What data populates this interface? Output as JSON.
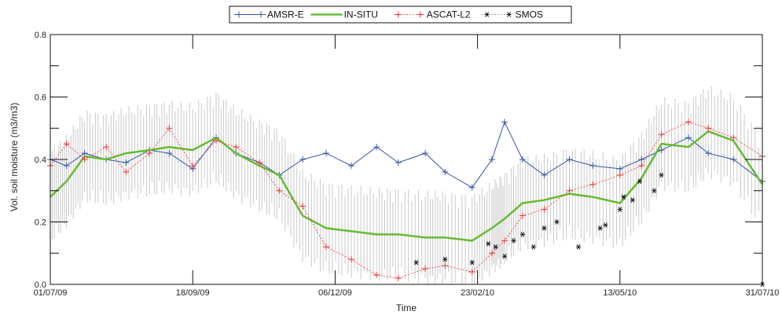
{
  "chart_data": {
    "type": "line",
    "xlabel": "Time",
    "ylabel": "Vol. soil moisture (m3/m3)",
    "ylim": [
      0,
      0.8
    ],
    "xlim": [
      "2009-07-01",
      "2010-07-31"
    ],
    "x_ticks": [
      "01/07/09",
      "18/09/09",
      "06/12/09",
      "23/02/10",
      "13/05/10",
      "31/07/10"
    ],
    "y_ticks": [
      "0.0",
      "0.2",
      "0.4",
      "0.6",
      "0.8"
    ],
    "grid": false,
    "legend_position": "top-center",
    "series": [
      {
        "name": "AMSR-E",
        "color": "#3355aa",
        "marker": "plus",
        "x": [
          "2009-07-01",
          "2009-07-10",
          "2009-07-20",
          "2009-08-01",
          "2009-08-12",
          "2009-08-25",
          "2009-09-05",
          "2009-09-18",
          "2009-10-01",
          "2009-10-12",
          "2009-10-25",
          "2009-11-05",
          "2009-11-18",
          "2009-12-01",
          "2009-12-15",
          "2009-12-29",
          "2010-01-10",
          "2010-01-25",
          "2010-02-05",
          "2010-02-20",
          "2010-03-03",
          "2010-03-10",
          "2010-03-20",
          "2010-04-01",
          "2010-04-15",
          "2010-04-28",
          "2010-05-13",
          "2010-05-25",
          "2010-06-05",
          "2010-06-20",
          "2010-07-01",
          "2010-07-15",
          "2010-07-31"
        ],
        "y": [
          0.4,
          0.38,
          0.42,
          0.4,
          0.39,
          0.43,
          0.42,
          0.37,
          0.47,
          0.42,
          0.39,
          0.35,
          0.4,
          0.42,
          0.38,
          0.44,
          0.39,
          0.42,
          0.36,
          0.31,
          0.4,
          0.52,
          0.4,
          0.35,
          0.4,
          0.38,
          0.37,
          0.4,
          0.43,
          0.47,
          0.42,
          0.4,
          0.33
        ]
      },
      {
        "name": "IN-SITU",
        "color": "#66bb33",
        "marker": "none",
        "x": [
          "2009-07-01",
          "2009-07-10",
          "2009-07-20",
          "2009-08-01",
          "2009-08-12",
          "2009-08-25",
          "2009-09-05",
          "2009-09-18",
          "2009-10-01",
          "2009-10-12",
          "2009-10-25",
          "2009-11-05",
          "2009-11-18",
          "2009-12-01",
          "2009-12-15",
          "2009-12-29",
          "2010-01-10",
          "2010-01-25",
          "2010-02-05",
          "2010-02-20",
          "2010-03-03",
          "2010-03-10",
          "2010-03-20",
          "2010-04-01",
          "2010-04-15",
          "2010-04-28",
          "2010-05-13",
          "2010-05-25",
          "2010-06-05",
          "2010-06-20",
          "2010-07-01",
          "2010-07-15",
          "2010-07-31"
        ],
        "y": [
          0.28,
          0.33,
          0.41,
          0.4,
          0.42,
          0.43,
          0.44,
          0.43,
          0.47,
          0.42,
          0.38,
          0.35,
          0.22,
          0.18,
          0.17,
          0.16,
          0.16,
          0.15,
          0.15,
          0.14,
          0.18,
          0.21,
          0.26,
          0.27,
          0.29,
          0.28,
          0.26,
          0.34,
          0.45,
          0.44,
          0.49,
          0.46,
          0.32
        ]
      },
      {
        "name": "ASCAT-L2",
        "color": "#ee3333",
        "marker": "plus",
        "x": [
          "2009-07-01",
          "2009-07-10",
          "2009-07-20",
          "2009-08-01",
          "2009-08-12",
          "2009-08-25",
          "2009-09-05",
          "2009-09-18",
          "2009-10-01",
          "2009-10-12",
          "2009-10-25",
          "2009-11-05",
          "2009-11-18",
          "2009-12-01",
          "2009-12-15",
          "2009-12-29",
          "2010-01-10",
          "2010-01-25",
          "2010-02-05",
          "2010-02-20",
          "2010-03-03",
          "2010-03-10",
          "2010-03-20",
          "2010-04-01",
          "2010-04-15",
          "2010-04-28",
          "2010-05-13",
          "2010-05-25",
          "2010-06-05",
          "2010-06-20",
          "2010-07-01",
          "2010-07-15",
          "2010-07-31"
        ],
        "y": [
          0.38,
          0.45,
          0.4,
          0.44,
          0.36,
          0.42,
          0.5,
          0.38,
          0.46,
          0.44,
          0.39,
          0.3,
          0.25,
          0.12,
          0.08,
          0.03,
          0.02,
          0.05,
          0.06,
          0.04,
          0.1,
          0.14,
          0.22,
          0.24,
          0.3,
          0.32,
          0.35,
          0.38,
          0.48,
          0.52,
          0.5,
          0.47,
          0.41
        ]
      },
      {
        "name": "SMOS",
        "color": "#111111",
        "marker": "asterisk",
        "x": [
          "2010-01-20",
          "2010-02-05",
          "2010-02-20",
          "2010-03-01",
          "2010-03-05",
          "2010-03-10",
          "2010-03-15",
          "2010-03-20",
          "2010-03-26",
          "2010-04-01",
          "2010-04-08",
          "2010-04-20",
          "2010-05-02",
          "2010-05-05",
          "2010-05-13",
          "2010-05-15",
          "2010-05-20",
          "2010-05-24",
          "2010-06-01",
          "2010-06-05",
          "2010-07-31"
        ],
        "y": [
          0.07,
          0.08,
          0.07,
          0.13,
          0.12,
          0.09,
          0.14,
          0.16,
          0.12,
          0.18,
          0.2,
          0.12,
          0.18,
          0.19,
          0.24,
          0.28,
          0.27,
          0.33,
          0.3,
          0.35,
          0.0
        ]
      }
    ]
  }
}
